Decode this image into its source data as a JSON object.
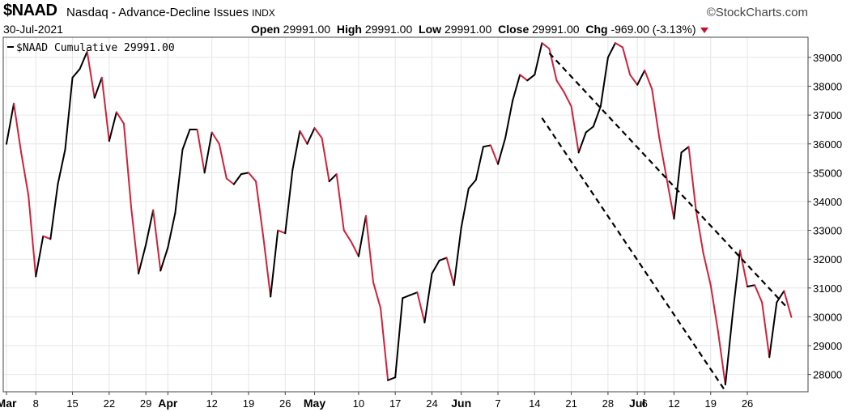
{
  "header": {
    "symbol": "$NAAD",
    "description": "Nasdaq - Advance-Decline Issues",
    "exchange": "INDX",
    "date": "30-Jul-2021",
    "brand": "©StockCharts.com",
    "open_label": "Open",
    "open": "29991.00",
    "high_label": "High",
    "high": "29991.00",
    "low_label": "Low",
    "low": "29991.00",
    "close_label": "Close",
    "close": "29991.00",
    "chg_label": "Chg",
    "chg": "-969.00 (-3.13%)"
  },
  "colors": {
    "up": "#000000",
    "down": "#d0203c",
    "grid": "#e6e6e6",
    "arrow": "#c8102e"
  },
  "chart_data": {
    "type": "line",
    "legend": "$NAAD Cumulative 29991.00",
    "ylim": [
      27400,
      39700
    ],
    "yticks": [
      28000,
      29000,
      30000,
      31000,
      32000,
      33000,
      34000,
      35000,
      36000,
      37000,
      38000,
      39000
    ],
    "x_axis_labels": [
      {
        "label": "Mar",
        "i": 0,
        "bold": true
      },
      {
        "label": "8",
        "i": 4
      },
      {
        "label": "15",
        "i": 9
      },
      {
        "label": "22",
        "i": 14
      },
      {
        "label": "29",
        "i": 19
      },
      {
        "label": "Apr",
        "i": 22,
        "bold": true
      },
      {
        "label": "12",
        "i": 28
      },
      {
        "label": "19",
        "i": 33
      },
      {
        "label": "26",
        "i": 38
      },
      {
        "label": "May",
        "i": 42,
        "bold": true
      },
      {
        "label": "10",
        "i": 48
      },
      {
        "label": "17",
        "i": 53
      },
      {
        "label": "24",
        "i": 58
      },
      {
        "label": "Jun",
        "i": 62,
        "bold": true
      },
      {
        "label": "7",
        "i": 67
      },
      {
        "label": "14",
        "i": 72
      },
      {
        "label": "21",
        "i": 77
      },
      {
        "label": "28",
        "i": 82
      },
      {
        "label": "Jul",
        "i": 86,
        "bold": true
      },
      {
        "label": "6",
        "i": 87
      },
      {
        "label": "12",
        "i": 91
      },
      {
        "label": "19",
        "i": 96
      },
      {
        "label": "26",
        "i": 101
      }
    ],
    "values": [
      36000,
      37400,
      35700,
      34200,
      31400,
      32800,
      32700,
      34600,
      35800,
      38300,
      38600,
      39200,
      37600,
      38300,
      36100,
      37100,
      36700,
      33800,
      31500,
      32500,
      33700,
      31600,
      32400,
      33600,
      35800,
      36500,
      36500,
      35000,
      36400,
      36000,
      34800,
      34600,
      34950,
      35000,
      34700,
      32800,
      30700,
      33000,
      32900,
      35100,
      36450,
      36000,
      36550,
      36200,
      34700,
      34950,
      33000,
      32600,
      32100,
      33500,
      31200,
      30300,
      27800,
      27900,
      30650,
      30750,
      30850,
      29800,
      31500,
      31950,
      32050,
      31100,
      33100,
      34450,
      34750,
      35900,
      35950,
      35300,
      36200,
      37500,
      38400,
      38200,
      38400,
      39500,
      39300,
      38200,
      37800,
      37300,
      35700,
      36400,
      36600,
      37300,
      39000,
      39500,
      39350,
      38400,
      38050,
      38550,
      37900,
      36200,
      34800,
      33400,
      35700,
      35900,
      33700,
      32200,
      31100,
      29500,
      27650,
      30100,
      32300,
      31050,
      31100,
      30500,
      28600,
      30500,
      30900,
      29991
    ],
    "trendlines": [
      {
        "from": [
          74,
          39150
        ],
        "to": [
          106.5,
          30300
        ]
      },
      {
        "from": [
          73,
          36900
        ],
        "to": [
          97.8,
          27500
        ]
      }
    ]
  }
}
